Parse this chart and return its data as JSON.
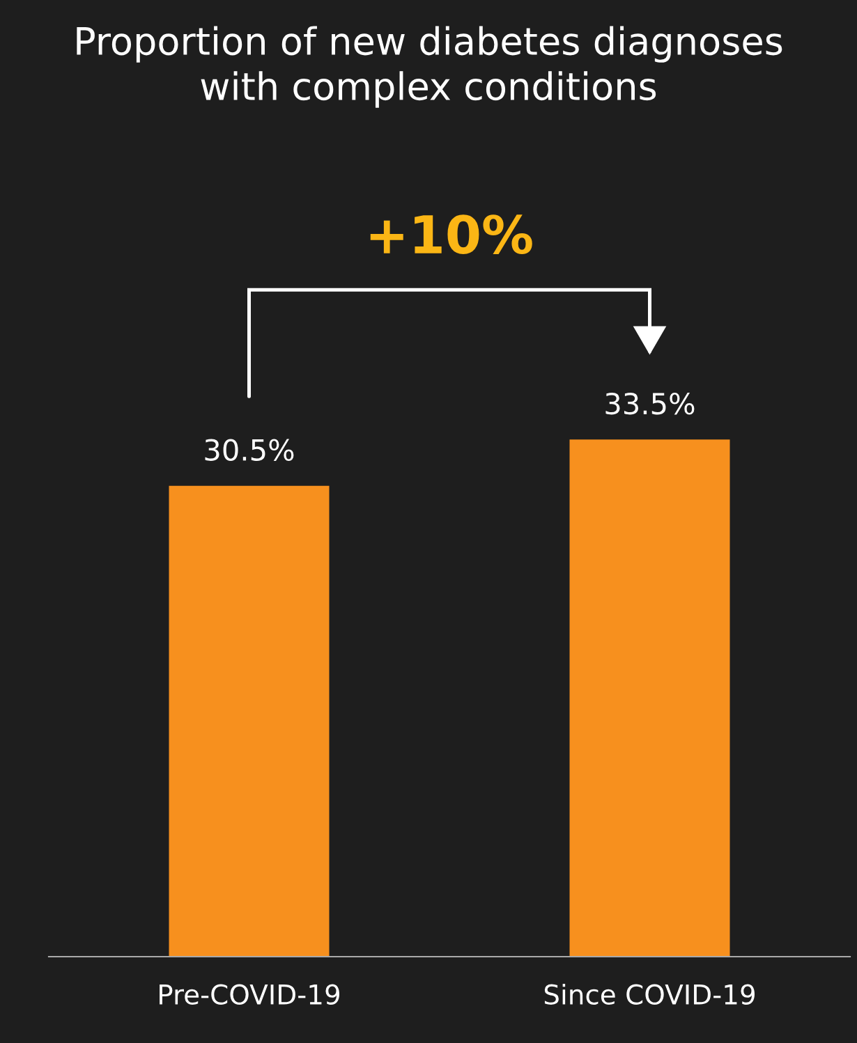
{
  "chart_data": {
    "type": "bar",
    "title": "Proportion of new diabetes diagnoses\nwith complex conditions",
    "categories": [
      "Pre-COVID-19",
      "Since COVID-19"
    ],
    "values": [
      30.5,
      33.5
    ],
    "value_labels": [
      "30.5%",
      "33.5%"
    ],
    "color": "#f7901e",
    "annotations": [
      "+10%"
    ],
    "grid": false,
    "legend": false
  }
}
